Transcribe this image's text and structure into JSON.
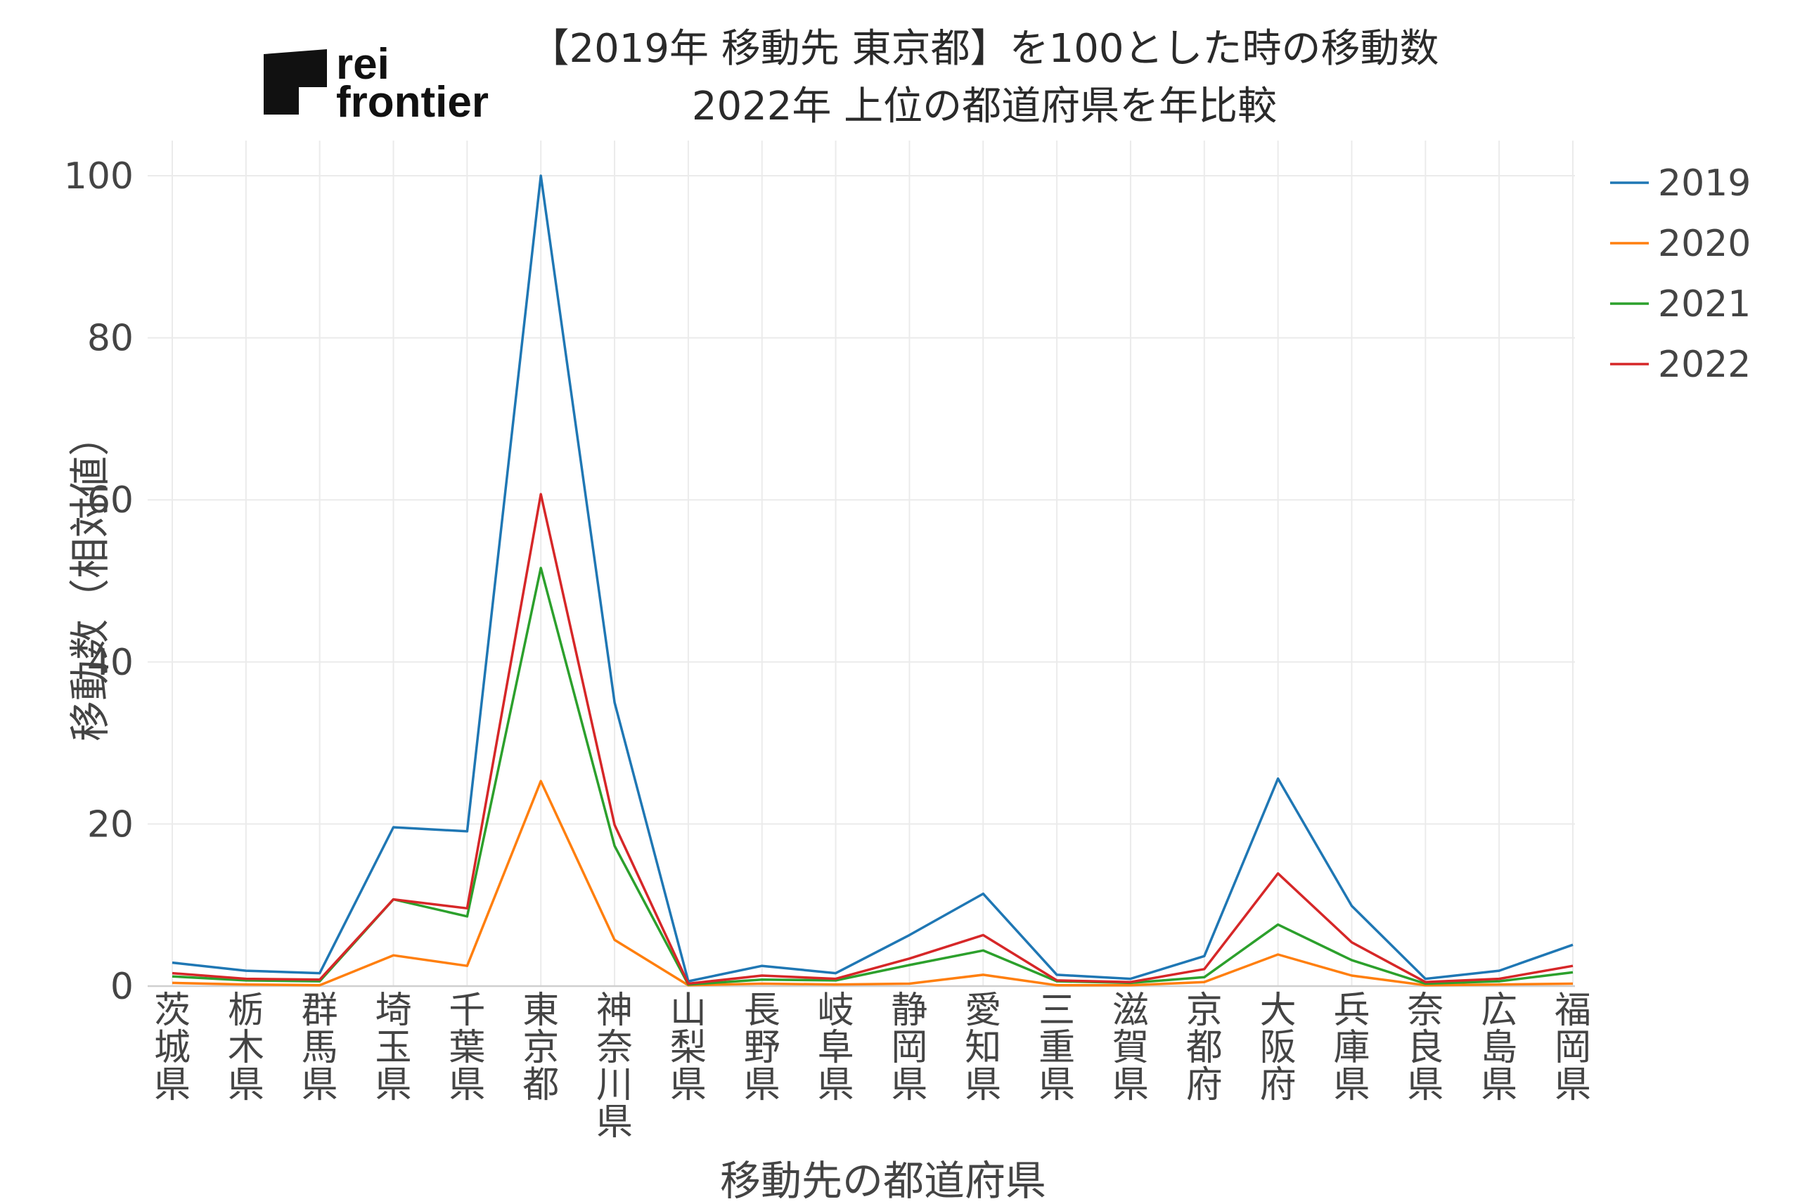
{
  "logo": {
    "line1": "rei",
    "line2": "frontier"
  },
  "chart_data": {
    "type": "line",
    "title": [
      "【2019年 移動先 東京都】を100とした時の移動数",
      "2022年 上位の都道府県を年比較"
    ],
    "xlabel": "移動先の都道府県",
    "ylabel": "移動数（相対値）",
    "ylim": [
      0,
      100
    ],
    "yticks": [
      0,
      20,
      40,
      60,
      80,
      100
    ],
    "grid": true,
    "legend_position": "top-right",
    "categories": [
      "茨城県",
      "栃木県",
      "群馬県",
      "埼玉県",
      "千葉県",
      "東京都",
      "神奈川県",
      "山梨県",
      "長野県",
      "岐阜県",
      "静岡県",
      "愛知県",
      "三重県",
      "滋賀県",
      "京都府",
      "大阪府",
      "兵庫県",
      "奈良県",
      "広島県",
      "福岡県"
    ],
    "series": [
      {
        "name": "2019",
        "color": "#1f77b4",
        "values": [
          2.9,
          1.9,
          1.6,
          19.6,
          19.1,
          100,
          35.0,
          0.6,
          2.5,
          1.6,
          6.3,
          11.4,
          1.4,
          0.9,
          3.7,
          25.6,
          9.9,
          0.9,
          1.9,
          5.1
        ]
      },
      {
        "name": "2020",
        "color": "#ff7f0e",
        "values": [
          0.4,
          0.2,
          0.1,
          3.8,
          2.5,
          25.3,
          5.7,
          0.1,
          0.3,
          0.2,
          0.3,
          1.4,
          0.1,
          0.1,
          0.5,
          3.9,
          1.3,
          0.1,
          0.2,
          0.3
        ]
      },
      {
        "name": "2021",
        "color": "#2ca02c",
        "values": [
          1.2,
          0.7,
          0.6,
          10.7,
          8.6,
          51.6,
          17.3,
          0.2,
          0.8,
          0.7,
          2.6,
          4.4,
          0.6,
          0.4,
          1.1,
          7.6,
          3.2,
          0.3,
          0.6,
          1.7
        ]
      },
      {
        "name": "2022",
        "color": "#d62728",
        "values": [
          1.6,
          0.9,
          0.8,
          10.7,
          9.6,
          60.7,
          19.9,
          0.3,
          1.3,
          0.9,
          3.4,
          6.3,
          0.7,
          0.5,
          2.1,
          13.9,
          5.4,
          0.5,
          0.9,
          2.5
        ]
      }
    ]
  }
}
